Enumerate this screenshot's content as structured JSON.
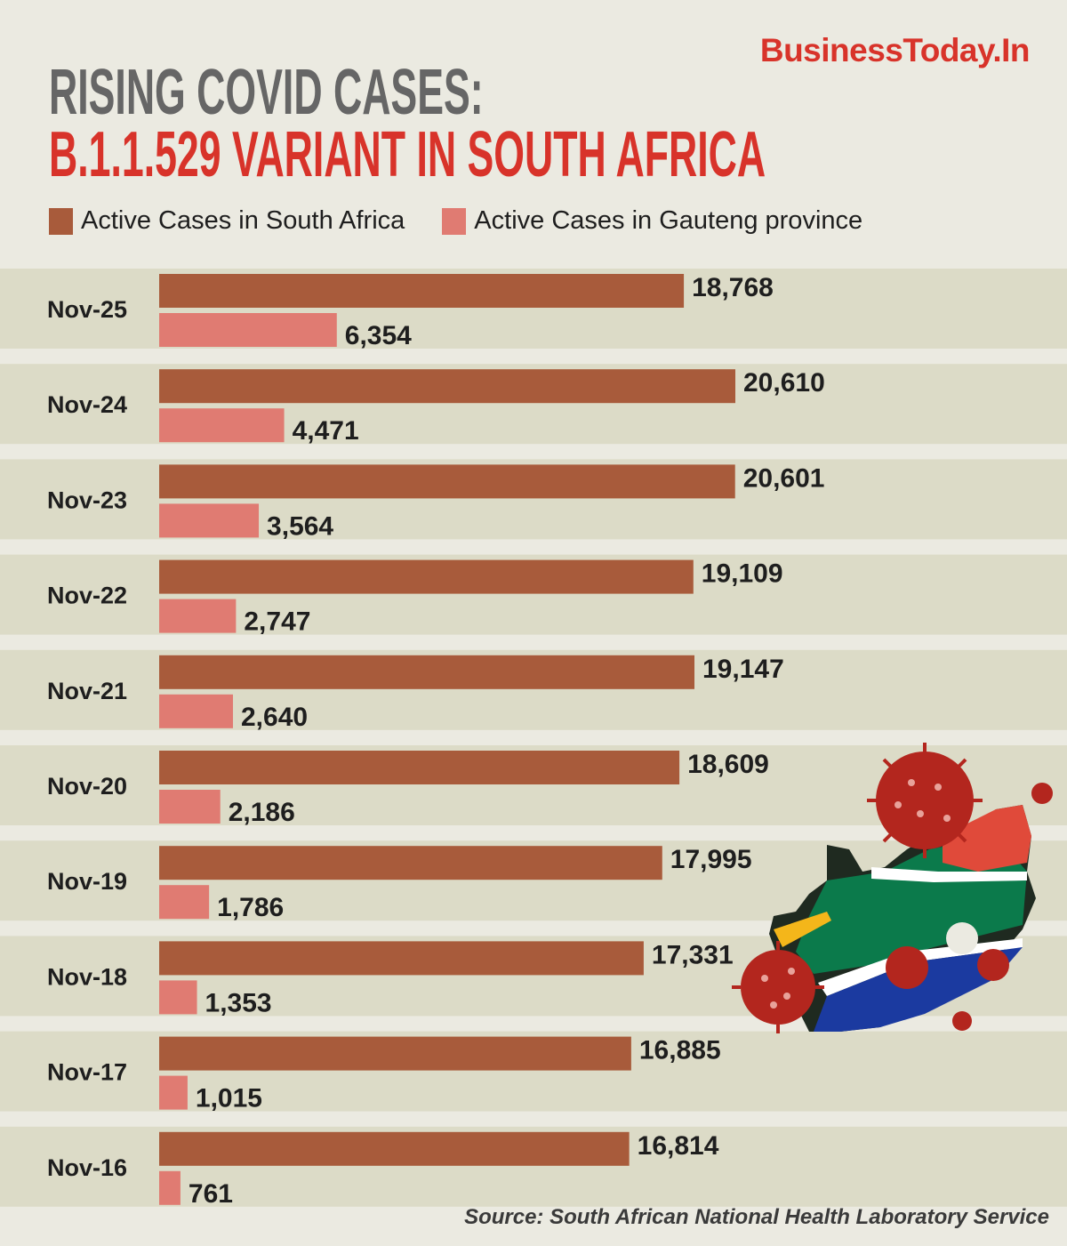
{
  "brand": "BusinessToday.In",
  "title_line1": "RISING COVID CASES:",
  "title_line2": "B.1.1.529 VARIANT IN SOUTH AFRICA",
  "source": "Source: South African National Health Laboratory Service",
  "colors": {
    "south_africa": "#a85b3b",
    "gauteng": "#e07b72",
    "accent": "#d8332a",
    "band": "#dcdbc7"
  },
  "icons": [
    "south-africa-flag-map-icon",
    "virus-icon"
  ],
  "chart_data": {
    "type": "bar",
    "orientation": "horizontal",
    "categories": [
      "Nov-25",
      "Nov-24",
      "Nov-23",
      "Nov-22",
      "Nov-21",
      "Nov-20",
      "Nov-19",
      "Nov-18",
      "Nov-17",
      "Nov-16"
    ],
    "series": [
      {
        "name": "Active Cases in South Africa",
        "values": [
          18768,
          20610,
          20601,
          19109,
          19147,
          18609,
          17995,
          17331,
          16885,
          16814
        ],
        "labels": [
          "18,768",
          "20,610",
          "20,601",
          "19,109",
          "19,147",
          "18,609",
          "17,995",
          "17,331",
          "16,885",
          "16,814"
        ]
      },
      {
        "name": "Active Cases in Gauteng province",
        "values": [
          6354,
          4471,
          3564,
          2747,
          2640,
          2186,
          1786,
          1353,
          1015,
          761
        ],
        "labels": [
          "6,354",
          "4,471",
          "3,564",
          "2,747",
          "2,640",
          "2,186",
          "1,786",
          "1,353",
          "1,015",
          "761"
        ]
      }
    ],
    "xlim": [
      0,
      20610
    ],
    "legend": "top-left",
    "grid": false
  }
}
